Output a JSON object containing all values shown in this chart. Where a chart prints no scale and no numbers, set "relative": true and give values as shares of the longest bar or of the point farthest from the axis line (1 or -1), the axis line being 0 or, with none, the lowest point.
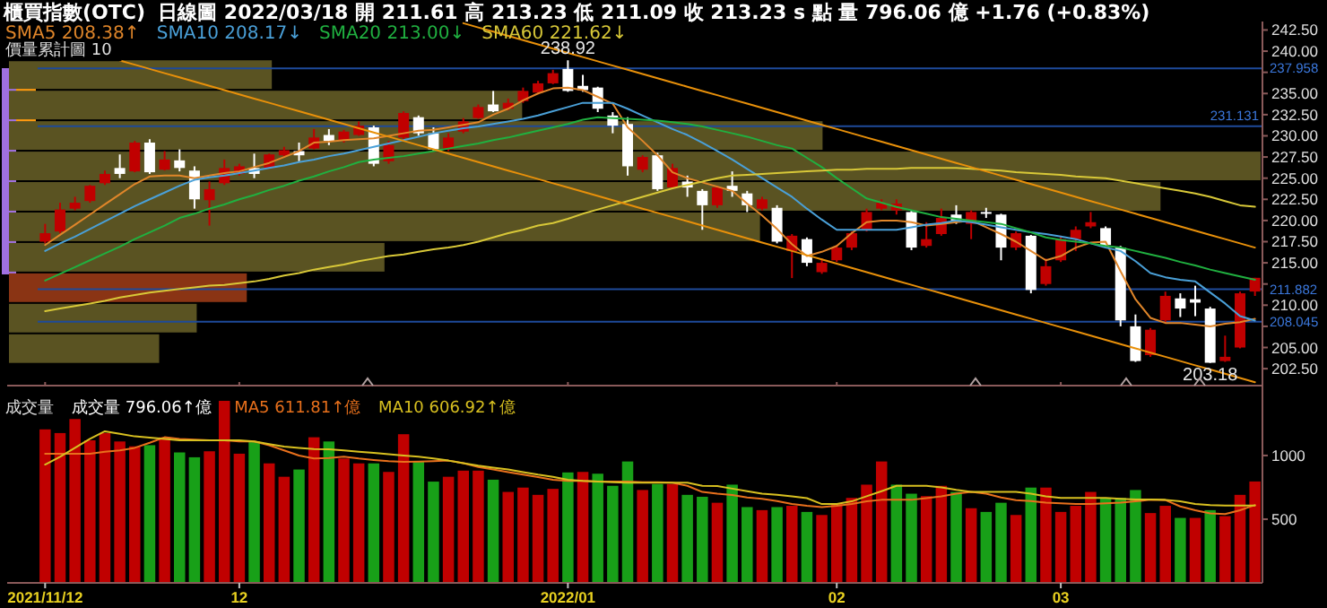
{
  "chart_data": [
    {
      "type": "candlestick",
      "title": "櫃買指數(OTC)",
      "subtitle": "日線圖  2022/03/18  開 211.61  高 213.23  低 211.09  收 213.23 s 點  量 796.06 億  +1.76 (+0.83%)",
      "legend": "top left",
      "tick_labels": "y",
      "categories": [
        "2021/11/12",
        null,
        null,
        null,
        null,
        null,
        null,
        null,
        null,
        null,
        null,
        null,
        null,
        "12",
        null,
        null,
        null,
        null,
        null,
        null,
        null,
        null,
        null,
        null,
        null,
        null,
        null,
        null,
        null,
        null,
        null,
        null,
        null,
        null,
        null,
        "2022/01",
        null,
        null,
        null,
        null,
        null,
        null,
        null,
        null,
        null,
        null,
        null,
        null,
        null,
        null,
        null,
        null,
        null,
        "02",
        null,
        null,
        null,
        null,
        null,
        null,
        null,
        null,
        null,
        null,
        null,
        null,
        null,
        null,
        "03",
        null,
        null,
        null,
        null,
        null,
        null,
        null,
        null,
        null,
        null,
        null,
        null,
        null
      ],
      "ylim": [
        200.5,
        243.5
      ],
      "yticks": [
        {
          "value": 202.5,
          "label": "202.50"
        },
        {
          "value": 205,
          "label": "205.00"
        },
        {
          "value": 207.5,
          "label": null
        },
        {
          "value": 210,
          "label": "210.00"
        },
        {
          "value": 212.5,
          "label": null
        },
        {
          "value": 215,
          "label": "215.00"
        },
        {
          "value": 217.5,
          "label": "217.50"
        },
        {
          "value": 220,
          "label": "220.00"
        },
        {
          "value": 222.5,
          "label": "222.50"
        },
        {
          "value": 225,
          "label": "225.00"
        },
        {
          "value": 227.5,
          "label": "227.50"
        },
        {
          "value": 230,
          "label": "230.00"
        },
        {
          "value": 232.5,
          "label": "232.50"
        },
        {
          "value": 235,
          "label": "235.00"
        },
        {
          "value": 237.5,
          "label": null
        },
        {
          "value": 240,
          "label": "240.00"
        },
        {
          "value": 242.5,
          "label": "242.50"
        }
      ],
      "ref_lines": [
        {
          "axis": "y",
          "value": 237.958,
          "label": "237.958",
          "color": "#1e4a9a"
        },
        {
          "axis": "y",
          "value": 231.131,
          "label": "231.131",
          "color": "#1e4a9a"
        },
        {
          "axis": "y",
          "value": 211.882,
          "label": "211.882",
          "color": "#1e4a9a"
        },
        {
          "axis": "y",
          "value": 208.045,
          "label": "208.045",
          "color": "#1e4a9a"
        }
      ],
      "annotations": [
        {
          "text": "238.92",
          "y": 238.92
        },
        {
          "text": "203.18",
          "y": 203.18
        }
      ],
      "ohlc": [
        [
          217.5,
          219.6,
          217.3,
          218.5
        ],
        [
          218.7,
          222.1,
          218.5,
          221.3
        ],
        [
          221.4,
          222.8,
          221.2,
          222.1
        ],
        [
          222.3,
          224.2,
          222.1,
          224.1
        ],
        [
          224.4,
          225.9,
          224.2,
          225.5
        ],
        [
          226.2,
          227.8,
          225.0,
          225.5
        ],
        [
          225.8,
          229.4,
          225.7,
          229.2
        ],
        [
          229.2,
          229.6,
          225.5,
          225.7
        ],
        [
          226.0,
          228.2,
          225.9,
          227.2
        ],
        [
          227.1,
          228.4,
          225.8,
          226.2
        ],
        [
          225.9,
          226.4,
          221.4,
          222.5
        ],
        [
          222.4,
          224.6,
          219.4,
          223.7
        ],
        [
          224.4,
          227.2,
          224.2,
          226.2
        ],
        [
          225.5,
          226.7,
          225.3,
          226.4
        ],
        [
          226.2,
          227.9,
          225.0,
          225.5
        ],
        [
          226.2,
          227.9,
          226.1,
          227.8
        ],
        [
          227.7,
          228.7,
          227.5,
          228.3
        ],
        [
          228.2,
          229.2,
          227.0,
          227.7
        ],
        [
          228.5,
          230.8,
          228.4,
          229.8
        ],
        [
          230.1,
          230.8,
          228.9,
          229.4
        ],
        [
          229.4,
          230.7,
          229.2,
          230.5
        ],
        [
          230.1,
          231.7,
          230.0,
          231.2
        ],
        [
          231.0,
          231.2,
          226.4,
          226.7
        ],
        [
          227.0,
          229.4,
          226.7,
          228.9
        ],
        [
          229.8,
          232.9,
          229.6,
          232.7
        ],
        [
          232.2,
          232.4,
          230.0,
          230.3
        ],
        [
          230.3,
          231.0,
          228.2,
          228.4
        ],
        [
          228.4,
          230.3,
          228.2,
          229.8
        ],
        [
          230.5,
          232.1,
          230.3,
          231.7
        ],
        [
          232.1,
          233.7,
          232.0,
          233.4
        ],
        [
          233.7,
          235.3,
          232.8,
          232.9
        ],
        [
          233.2,
          234.4,
          233.0,
          233.9
        ],
        [
          234.1,
          235.7,
          233.9,
          235.3
        ],
        [
          235.1,
          236.5,
          234.9,
          236.2
        ],
        [
          236.2,
          237.8,
          236.1,
          237.4
        ],
        [
          237.9,
          238.92,
          235.2,
          235.3
        ],
        [
          235.9,
          237.2,
          235.2,
          235.4
        ],
        [
          235.7,
          235.8,
          232.8,
          233.2
        ],
        [
          232.4,
          232.8,
          230.3,
          231.2
        ],
        [
          231.4,
          232.2,
          225.3,
          226.4
        ],
        [
          226.0,
          227.7,
          225.7,
          227.5
        ],
        [
          227.7,
          228.0,
          223.5,
          223.7
        ],
        [
          223.9,
          226.7,
          223.7,
          226.2
        ],
        [
          224.6,
          225.3,
          222.8,
          223.9
        ],
        [
          223.5,
          223.7,
          218.9,
          221.8
        ],
        [
          221.8,
          224.1,
          221.5,
          223.9
        ],
        [
          224.1,
          225.8,
          222.8,
          223.5
        ],
        [
          223.2,
          223.5,
          221.0,
          221.8
        ],
        [
          221.4,
          222.8,
          221.2,
          222.5
        ],
        [
          221.5,
          221.8,
          217.3,
          217.5
        ],
        [
          216.4,
          218.4,
          213.2,
          218.2
        ],
        [
          217.8,
          218.0,
          214.6,
          215.0
        ],
        [
          213.9,
          215.5,
          213.7,
          215.0
        ],
        [
          215.3,
          217.1,
          215.1,
          216.8
        ],
        [
          216.8,
          218.7,
          216.5,
          218.5
        ],
        [
          218.9,
          221.4,
          218.7,
          221.0
        ],
        [
          221.4,
          222.5,
          221.2,
          222.1
        ],
        [
          221.2,
          222.5,
          220.7,
          222.0
        ],
        [
          221.0,
          221.2,
          216.5,
          216.8
        ],
        [
          217.0,
          219.8,
          216.8,
          217.8
        ],
        [
          218.4,
          221.4,
          218.2,
          220.3
        ],
        [
          220.7,
          221.8,
          219.6,
          220.0
        ],
        [
          219.6,
          221.2,
          217.8,
          221.0
        ],
        [
          221.0,
          221.5,
          220.3,
          220.8
        ],
        [
          220.7,
          220.8,
          215.3,
          216.8
        ],
        [
          216.8,
          218.7,
          216.5,
          218.5
        ],
        [
          218.2,
          218.3,
          211.4,
          211.8
        ],
        [
          212.5,
          215.5,
          212.3,
          214.6
        ],
        [
          215.3,
          218.2,
          215.1,
          217.8
        ],
        [
          217.8,
          219.3,
          216.4,
          218.9
        ],
        [
          219.3,
          221.0,
          219.1,
          219.8
        ],
        [
          219.1,
          219.3,
          217.0,
          217.1
        ],
        [
          216.8,
          217.0,
          207.5,
          208.2
        ],
        [
          207.5,
          208.9,
          203.3,
          203.4
        ],
        [
          204.1,
          207.3,
          203.9,
          207.1
        ],
        [
          208.2,
          211.6,
          207.9,
          211.1
        ],
        [
          210.8,
          211.4,
          208.6,
          209.6
        ],
        [
          210.7,
          212.3,
          208.7,
          210.3
        ],
        [
          209.6,
          209.8,
          203.18,
          203.2
        ],
        [
          203.4,
          206.4,
          203.3,
          203.9
        ],
        [
          205.0,
          211.6,
          204.9,
          211.4
        ],
        [
          211.61,
          213.23,
          211.09,
          213.23
        ]
      ],
      "series": [
        {
          "name": "SMA5 208.38↑",
          "type": "line",
          "color": "#e0862a",
          "values": [
            217.1,
            218.3,
            219.5,
            220.7,
            221.9,
            223.1,
            224.3,
            225.2,
            225.3,
            225.3,
            225.0,
            225.3,
            225.6,
            225.8,
            226.3,
            226.8,
            227.5,
            228.2,
            229.2,
            229.3,
            229.5,
            229.6,
            229.7,
            230.0,
            230.3,
            230.6,
            230.7,
            231.0,
            231.3,
            231.6,
            232.5,
            233.2,
            234.2,
            235.0,
            235.6,
            235.7,
            235.4,
            234.6,
            233.8,
            231.0,
            229.4,
            227.7,
            225.7,
            225.0,
            224.5,
            224.0,
            223.5,
            222.0,
            220.6,
            219.0,
            217.2,
            215.8,
            216.3,
            217.0,
            218.5,
            219.8,
            220.0,
            220.0,
            219.8,
            219.4,
            219.6,
            219.8,
            220.0,
            219.2,
            218.4,
            217.5,
            216.4,
            215.3,
            215.8,
            216.8,
            217.4,
            217.5,
            214.0,
            210.7,
            208.5,
            207.9,
            207.9,
            207.7,
            207.5,
            207.8,
            208.0,
            208.38
          ]
        },
        {
          "name": "SMA10 208.17↓",
          "type": "line",
          "color": "#4aa0d8",
          "values": [
            216.4,
            217.3,
            218.1,
            219.0,
            219.9,
            220.8,
            221.7,
            222.5,
            223.3,
            224.1,
            224.8,
            225.1,
            225.3,
            225.6,
            225.9,
            226.2,
            226.5,
            226.9,
            227.2,
            227.6,
            227.9,
            228.3,
            228.7,
            229.1,
            229.5,
            229.9,
            230.3,
            230.6,
            230.9,
            231.1,
            231.4,
            231.7,
            232.0,
            232.4,
            232.9,
            233.4,
            233.9,
            233.9,
            233.9,
            233.2,
            232.4,
            231.6,
            230.8,
            230.1,
            229.2,
            228.2,
            227.2,
            226.1,
            225.0,
            223.9,
            222.8,
            221.4,
            220.1,
            218.9,
            218.9,
            218.9,
            218.9,
            218.9,
            219.2,
            219.5,
            219.7,
            220.0,
            219.8,
            219.5,
            219.2,
            218.9,
            218.6,
            218.4,
            218.1,
            217.8,
            217.3,
            216.8,
            216.4,
            215.2,
            213.8,
            213.3,
            213.0,
            212.8,
            211.5,
            210.2,
            208.7,
            208.17
          ]
        },
        {
          "name": "SMA20 213.00↓",
          "type": "line",
          "color": "#20b040",
          "values": [
            212.9,
            213.7,
            214.5,
            215.3,
            216.1,
            216.9,
            217.8,
            218.6,
            219.4,
            220.3,
            220.8,
            221.4,
            221.9,
            222.5,
            223.0,
            223.6,
            224.1,
            224.7,
            225.2,
            225.8,
            226.3,
            226.9,
            227.2,
            227.4,
            227.6,
            227.9,
            228.2,
            228.5,
            228.8,
            229.1,
            229.5,
            229.8,
            230.2,
            230.6,
            231.0,
            231.4,
            231.9,
            232.2,
            232.1,
            232.0,
            231.9,
            231.8,
            231.6,
            231.4,
            231.1,
            230.7,
            230.3,
            229.9,
            229.4,
            228.9,
            228.5,
            227.4,
            226.3,
            225.0,
            223.8,
            222.6,
            222.1,
            221.6,
            221.2,
            220.8,
            220.4,
            220.2,
            220.0,
            219.8,
            219.6,
            219.1,
            218.6,
            218.0,
            217.7,
            217.5,
            217.3,
            217.0,
            216.8,
            216.4,
            216.0,
            215.6,
            215.1,
            214.7,
            214.2,
            213.8,
            213.4,
            213.0
          ]
        },
        {
          "name": "SMA60 221.62↓",
          "type": "line",
          "color": "#d8c838",
          "values": [
            209.3,
            209.6,
            209.9,
            210.2,
            210.5,
            210.9,
            211.2,
            211.5,
            211.7,
            211.9,
            212.1,
            212.3,
            212.4,
            212.6,
            212.8,
            213.1,
            213.5,
            213.8,
            214.2,
            214.5,
            214.8,
            215.2,
            215.5,
            215.8,
            216.0,
            216.3,
            216.6,
            216.8,
            217.1,
            217.5,
            218.0,
            218.5,
            218.9,
            219.4,
            219.7,
            220.2,
            220.8,
            221.3,
            221.8,
            222.3,
            222.8,
            223.3,
            223.8,
            224.2,
            224.6,
            225.0,
            225.3,
            225.4,
            225.5,
            225.6,
            225.7,
            225.8,
            225.9,
            226.0,
            226.0,
            226.1,
            226.1,
            226.1,
            226.2,
            226.2,
            226.2,
            226.2,
            226.1,
            226.0,
            225.9,
            225.7,
            225.6,
            225.5,
            225.4,
            225.2,
            225.1,
            225.0,
            224.7,
            224.4,
            224.1,
            223.8,
            223.5,
            223.2,
            222.8,
            222.3,
            221.8,
            221.62
          ]
        },
        {
          "type": "line",
          "color": "#e8900a",
          "values": [
            null,
            null,
            null,
            null,
            null,
            238.9,
            238.4,
            237.9,
            237.4,
            236.9,
            236.4,
            235.9,
            235.4,
            234.9,
            234.4,
            233.9,
            233.4,
            232.9,
            232.4,
            231.9,
            231.4,
            230.9,
            230.4,
            229.9,
            229.4,
            228.9,
            228.4,
            227.9,
            227.4,
            226.9,
            226.4,
            225.9,
            225.4,
            224.9,
            224.4,
            223.9,
            223.4,
            222.9,
            222.4,
            221.9,
            221.4,
            220.9,
            220.4,
            219.9,
            219.4,
            218.9,
            218.4,
            217.9,
            217.4,
            216.9,
            216.4,
            215.9,
            215.4,
            214.9,
            214.4,
            213.9,
            213.4,
            212.9,
            212.4,
            211.9,
            211.4,
            210.9,
            210.4,
            209.9,
            209.4,
            208.9,
            208.4,
            207.9,
            207.4,
            206.9,
            206.4,
            205.9,
            205.4,
            204.9,
            204.4,
            203.9,
            203.4,
            202.9,
            202.4,
            201.9,
            201.4,
            200.9
          ]
        },
        {
          "type": "line",
          "color": "#e8900a",
          "values": [
            null,
            null,
            null,
            null,
            null,
            null,
            null,
            null,
            null,
            null,
            null,
            null,
            null,
            null,
            null,
            null,
            null,
            null,
            null,
            null,
            null,
            null,
            null,
            null,
            null,
            null,
            null,
            null,
            243.3,
            242.8,
            242.3,
            241.8,
            241.3,
            240.8,
            240.3,
            239.8,
            239.3,
            238.8,
            238.3,
            237.8,
            237.3,
            236.8,
            236.3,
            235.8,
            235.3,
            234.8,
            234.3,
            233.8,
            233.3,
            232.8,
            232.3,
            231.8,
            231.3,
            230.8,
            230.3,
            229.8,
            229.3,
            228.8,
            228.3,
            227.8,
            227.3,
            226.8,
            226.3,
            225.8,
            225.3,
            224.8,
            224.3,
            223.8,
            223.3,
            222.8,
            222.3,
            221.8,
            221.3,
            220.8,
            220.3,
            219.8,
            219.3,
            218.8,
            218.3,
            217.8,
            217.3,
            216.8
          ]
        }
      ]
    },
    {
      "type": "bar",
      "title": "價量累計圖 10",
      "orientation": "horizontal",
      "relative": true,
      "tick_labels": false,
      "categories": [
        null,
        null,
        null,
        null,
        null,
        null,
        null,
        null,
        null,
        null
      ],
      "values": [
        0.21,
        0.41,
        0.65,
        1,
        0.92,
        0.6,
        0.3,
        0.19,
        0.15,
        0.12
      ],
      "colors": [
        "#5a5322",
        "#5a5322",
        "#5a5322",
        "#5a5322",
        "#5a5322",
        "#5a5322",
        "#5a5322",
        "#8a3414",
        "#5a5322",
        "#5a5322"
      ]
    },
    {
      "type": "bar",
      "ylabel": "成交量",
      "legend": "top left",
      "annotations": [
        "成交量 796.06↑億"
      ],
      "categories": [
        "2021/11/12",
        null,
        null,
        null,
        null,
        null,
        null,
        null,
        null,
        null,
        null,
        null,
        null,
        "12",
        null,
        null,
        null,
        null,
        null,
        null,
        null,
        null,
        null,
        null,
        null,
        null,
        null,
        null,
        null,
        null,
        null,
        null,
        null,
        null,
        null,
        "2022/01",
        null,
        null,
        null,
        null,
        null,
        null,
        null,
        null,
        null,
        null,
        null,
        null,
        null,
        null,
        null,
        null,
        null,
        "02",
        null,
        null,
        null,
        null,
        null,
        null,
        null,
        null,
        null,
        null,
        null,
        null,
        null,
        null,
        "03",
        null,
        null,
        null,
        null,
        null,
        null,
        null,
        null,
        null,
        null,
        null,
        null,
        null
      ],
      "ylim": [
        0,
        1450
      ],
      "yticks": [
        500,
        1000
      ],
      "series": [
        {
          "type": "bar",
          "values": [
            1205,
            1176,
            1286,
            1119,
            1176,
            1110,
            1072,
            1081,
            1143,
            1024,
            986,
            1033,
            1429,
            1014,
            1110,
            938,
            833,
            890,
            1143,
            1110,
            976,
            938,
            938,
            871,
            1167,
            953,
            795,
            833,
            881,
            881,
            810,
            714,
            748,
            691,
            738,
            867,
            871,
            857,
            762,
            953,
            729,
            776,
            776,
            691,
            676,
            629,
            771,
            595,
            571,
            595,
            605,
            557,
            533,
            619,
            667,
            771,
            953,
            771,
            700,
            681,
            762,
            714,
            586,
            557,
            629,
            533,
            748,
            748,
            557,
            605,
            714,
            667,
            667,
            729,
            548,
            605,
            510,
            510,
            571,
            524,
            691,
            796.06
          ],
          "colors": [
            "#c00000",
            "#c00000",
            "#c00000",
            "#c00000",
            "#c00000",
            "#c00000",
            "#c00000",
            "#18a018",
            "#c00000",
            "#18a018",
            "#18a018",
            "#c00000",
            "#c00000",
            "#c00000",
            "#18a018",
            "#c00000",
            "#c00000",
            "#18a018",
            "#c00000",
            "#18a018",
            "#c00000",
            "#c00000",
            "#18a018",
            "#c00000",
            "#c00000",
            "#18a018",
            "#18a018",
            "#c00000",
            "#c00000",
            "#c00000",
            "#18a018",
            "#c00000",
            "#c00000",
            "#c00000",
            "#c00000",
            "#18a018",
            "#c00000",
            "#18a018",
            "#18a018",
            "#18a018",
            "#c00000",
            "#18a018",
            "#c00000",
            "#18a018",
            "#18a018",
            "#c00000",
            "#18a018",
            "#18a018",
            "#c00000",
            "#18a018",
            "#c00000",
            "#18a018",
            "#c00000",
            "#c00000",
            "#c00000",
            "#c00000",
            "#c00000",
            "#18a018",
            "#18a018",
            "#c00000",
            "#c00000",
            "#18a018",
            "#c00000",
            "#18a018",
            "#18a018",
            "#c00000",
            "#18a018",
            "#c00000",
            "#c00000",
            "#c00000",
            "#c00000",
            "#18a018",
            "#18a018",
            "#18a018",
            "#c00000",
            "#c00000",
            "#18a018",
            "#c00000",
            "#18a018",
            "#c00000",
            "#c00000",
            "#c00000"
          ]
        },
        {
          "name": "MA5 611.81↑億",
          "type": "line",
          "color": "#e8701c",
          "values": [
            1014,
            1014,
            1014,
            1014,
            1030,
            1040,
            1060,
            1100,
            1143,
            1130,
            1125,
            1119,
            1119,
            1110,
            1110,
            1080,
            1040,
            1000,
            976,
            980,
            990,
            976,
            965,
            955,
            950,
            952,
            955,
            960,
            940,
            910,
            890,
            870,
            850,
            830,
            810,
            800,
            800,
            795,
            795,
            795,
            790,
            790,
            786,
            762,
            714,
            700,
            690,
            670,
            660,
            643,
            620,
            605,
            595,
            605,
            620,
            640,
            652,
            652,
            652,
            665,
            680,
            700,
            714,
            700,
            670,
            650,
            643,
            630,
            625,
            620,
            619,
            625,
            630,
            640,
            652,
            650,
            600,
            570,
            545,
            540,
            570,
            611.81
          ]
        },
        {
          "name": "MA10 606.92↑億",
          "type": "line",
          "color": "#d8c020",
          "values": [
            929,
            990,
            1060,
            1130,
            1190,
            1170,
            1150,
            1140,
            1130,
            1120,
            1120,
            1119,
            1119,
            1119,
            1110,
            1090,
            1070,
            1060,
            1050,
            1048,
            1040,
            1030,
            1020,
            1010,
            1000,
            990,
            976,
            960,
            940,
            920,
            905,
            890,
            870,
            850,
            833,
            810,
            800,
            795,
            790,
            786,
            786,
            786,
            786,
            786,
            762,
            760,
            740,
            720,
            700,
            691,
            680,
            665,
            619,
            620,
            640,
            680,
            720,
            762,
            762,
            762,
            750,
            730,
            714,
            714,
            714,
            714,
            700,
            680,
            667,
            667,
            667,
            667,
            660,
            655,
            655,
            652,
            640,
            620,
            610,
            607,
            607,
            606.92
          ]
        }
      ]
    }
  ]
}
